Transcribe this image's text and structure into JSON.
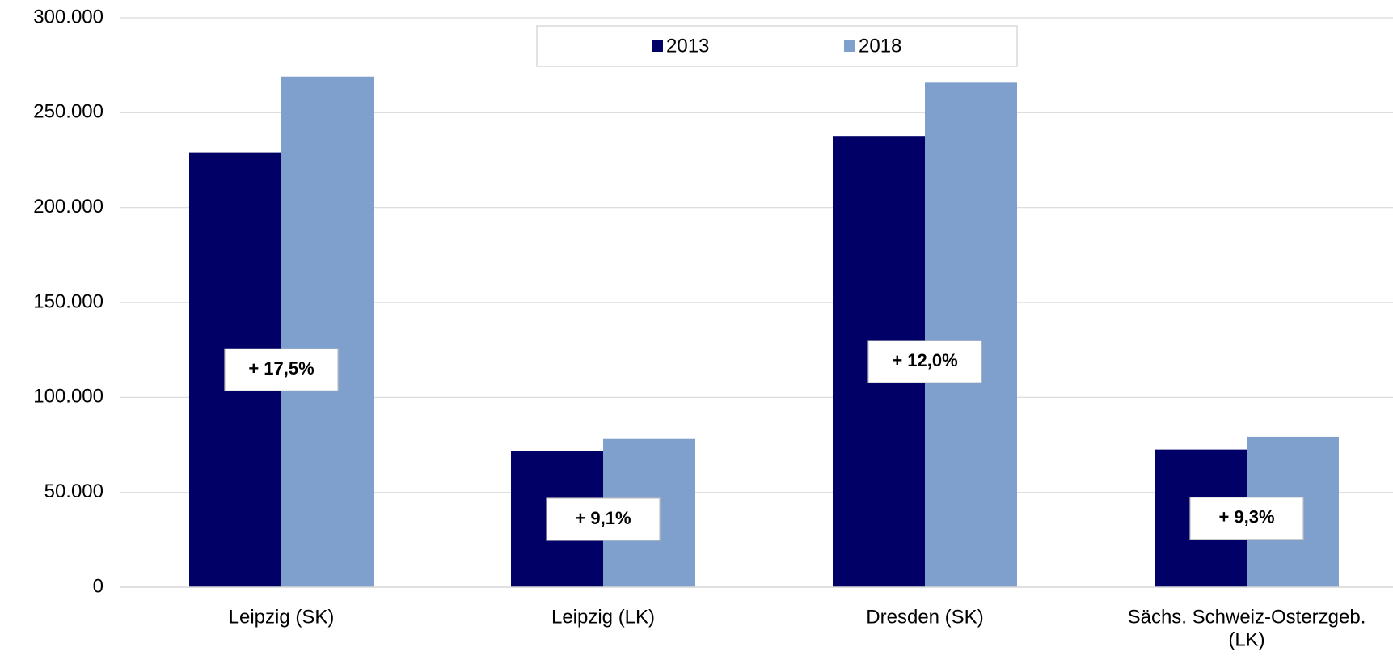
{
  "chart_data": {
    "type": "bar",
    "categories": [
      "Leipzig (SK)",
      "Leipzig (LK)",
      "Dresden (SK)",
      [
        "Sächs. Schweiz-Osterzgeb.",
        "(LK)"
      ]
    ],
    "series": [
      {
        "name": "2013",
        "color": "#000066",
        "values": [
          229000,
          71600,
          237700,
          72600
        ]
      },
      {
        "name": "2018",
        "color": "#7f9fcc",
        "values": [
          269000,
          78100,
          266200,
          79300
        ]
      }
    ],
    "annotations": [
      "+ 17,5%",
      "+ 9,1%",
      "+ 12,0%",
      "+ 9,3%"
    ],
    "ylim": [
      0,
      300000
    ],
    "yticks": [
      {
        "value": 0,
        "label": "0"
      },
      {
        "value": 50000,
        "label": "50.000"
      },
      {
        "value": 100000,
        "label": "100.000"
      },
      {
        "value": 150000,
        "label": "150.000"
      },
      {
        "value": 200000,
        "label": "200.000"
      },
      {
        "value": 250000,
        "label": "250.000"
      },
      {
        "value": 300000,
        "label": "300.000"
      }
    ],
    "grid": true,
    "legend": "top"
  }
}
